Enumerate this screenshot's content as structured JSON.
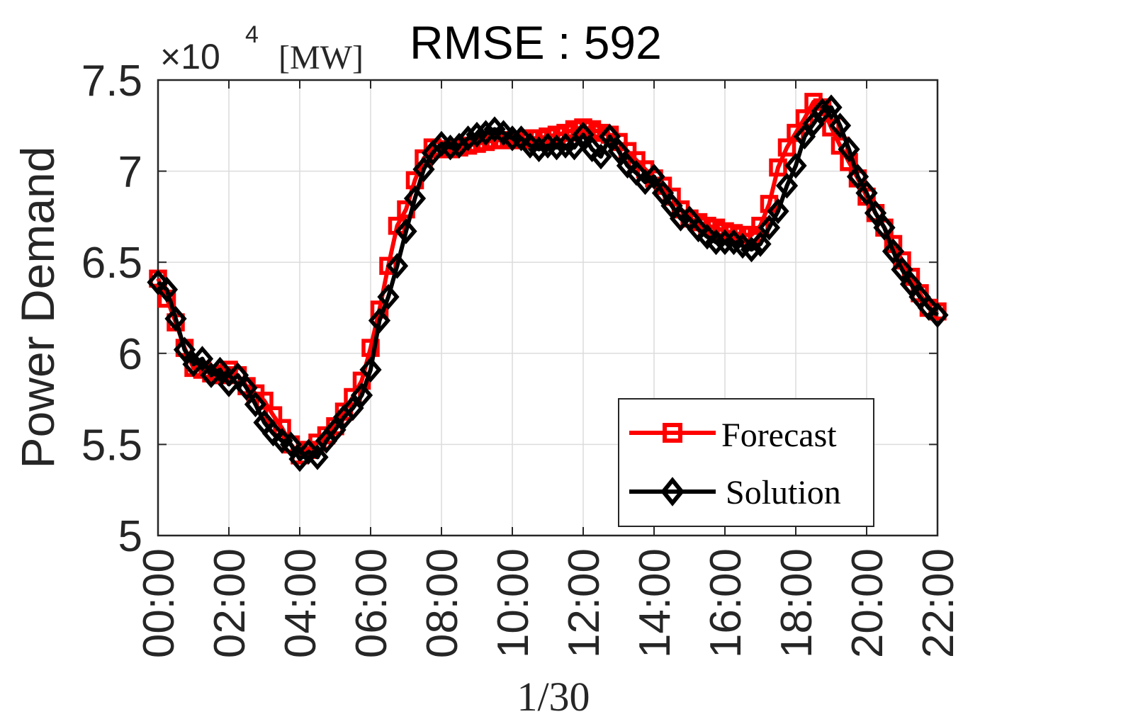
{
  "chart_data": {
    "type": "line",
    "title": "RMSE : 592",
    "scale_label": {
      "times": "×10",
      "exponent": "4",
      "unit": "[MW]"
    },
    "xlabel": "1/30",
    "ylabel": "Power Demand",
    "x_ticks": [
      "00:00",
      "02:00",
      "04:00",
      "06:00",
      "08:00",
      "10:00",
      "12:00",
      "14:00",
      "16:00",
      "18:00",
      "20:00",
      "22:00"
    ],
    "y_ticks": [
      "5",
      "5.5",
      "6",
      "6.5",
      "7",
      "7.5"
    ],
    "xlim": [
      0,
      22
    ],
    "ylim": [
      5,
      7.5
    ],
    "grid": true,
    "legend_position": "bottom-right",
    "x_hours": [
      0,
      0.25,
      0.5,
      0.75,
      1,
      1.25,
      1.5,
      1.75,
      2,
      2.25,
      2.5,
      2.75,
      3,
      3.25,
      3.5,
      3.75,
      4,
      4.25,
      4.5,
      4.75,
      5,
      5.25,
      5.5,
      5.75,
      6,
      6.25,
      6.5,
      6.75,
      7,
      7.25,
      7.5,
      7.75,
      8,
      8.25,
      8.5,
      8.75,
      9,
      9.25,
      9.5,
      9.75,
      10,
      10.25,
      10.5,
      10.75,
      11,
      11.25,
      11.5,
      11.75,
      12,
      12.25,
      12.5,
      12.75,
      13,
      13.25,
      13.5,
      13.75,
      14,
      14.25,
      14.5,
      14.75,
      15,
      15.25,
      15.5,
      15.75,
      16,
      16.25,
      16.5,
      16.75,
      17,
      17.25,
      17.5,
      17.75,
      18,
      18.25,
      18.5,
      18.75,
      19,
      19.25,
      19.5,
      19.75,
      20,
      20.25,
      20.5,
      20.75,
      21,
      21.25,
      21.5,
      21.75,
      22
    ],
    "series": [
      {
        "name": "Forecast",
        "color": "#ff0000",
        "marker": "square",
        "values": [
          6.41,
          6.3,
          6.17,
          6.03,
          5.92,
          5.91,
          5.89,
          5.88,
          5.91,
          5.88,
          5.82,
          5.78,
          5.74,
          5.66,
          5.59,
          5.5,
          5.44,
          5.47,
          5.51,
          5.55,
          5.6,
          5.68,
          5.76,
          5.85,
          6.03,
          6.24,
          6.48,
          6.7,
          6.79,
          6.95,
          7.07,
          7.13,
          7.12,
          7.12,
          7.13,
          7.14,
          7.15,
          7.16,
          7.17,
          7.17,
          7.17,
          7.17,
          7.18,
          7.18,
          7.19,
          7.2,
          7.21,
          7.23,
          7.24,
          7.23,
          7.21,
          7.2,
          7.16,
          7.11,
          7.06,
          7.01,
          6.96,
          6.92,
          6.86,
          6.79,
          6.74,
          6.72,
          6.7,
          6.69,
          6.67,
          6.66,
          6.65,
          6.65,
          6.7,
          6.82,
          7.02,
          7.13,
          7.21,
          7.29,
          7.38,
          7.35,
          7.24,
          7.14,
          7.05,
          6.96,
          6.86,
          6.77,
          6.69,
          6.6,
          6.51,
          6.42,
          6.33,
          6.25,
          6.23
        ]
      },
      {
        "name": "Solution",
        "color": "#000000",
        "marker": "diamond",
        "values": [
          6.39,
          6.35,
          6.19,
          6.02,
          5.94,
          5.97,
          5.88,
          5.91,
          5.83,
          5.88,
          5.81,
          5.72,
          5.62,
          5.56,
          5.52,
          5.5,
          5.42,
          5.46,
          5.43,
          5.52,
          5.58,
          5.65,
          5.7,
          5.77,
          5.91,
          6.18,
          6.31,
          6.48,
          6.67,
          6.85,
          7.01,
          7.1,
          7.15,
          7.13,
          7.14,
          7.18,
          7.2,
          7.21,
          7.23,
          7.21,
          7.18,
          7.18,
          7.14,
          7.12,
          7.14,
          7.13,
          7.14,
          7.13,
          7.2,
          7.12,
          7.08,
          7.19,
          7.11,
          7.03,
          6.99,
          6.94,
          6.97,
          6.88,
          6.81,
          6.74,
          6.74,
          6.68,
          6.64,
          6.61,
          6.61,
          6.61,
          6.59,
          6.57,
          6.6,
          6.69,
          6.78,
          6.92,
          7.03,
          7.19,
          7.26,
          7.33,
          7.35,
          7.25,
          7.12,
          6.97,
          6.88,
          6.77,
          6.69,
          6.56,
          6.46,
          6.38,
          6.31,
          6.25,
          6.21
        ]
      }
    ]
  }
}
